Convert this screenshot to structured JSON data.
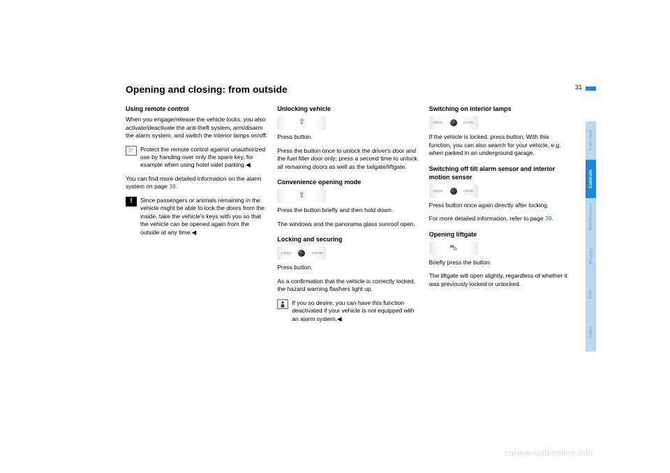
{
  "page_number": "31",
  "title": "Opening and closing: from outside",
  "watermark": "carmanualsonline.info",
  "col1": {
    "h1": "Using remote control",
    "p1": "When you engage/release the vehicle locks, you also activate/deactivate the anti-theft system, arm/disarm the alarm system, and switch the interior lamps on/off.",
    "note1": "Protect the remote control against unauthorized use by handing over only the spare key, for example when using hotel valet parking.◀",
    "p2a": "You can find more detailed information on the alarm system on page ",
    "p2link": "38",
    "p2b": ".",
    "warn1": "Since passengers or animals remaining in the vehicle might be able to lock the doors from the inside, take the vehicle's keys with you so that the vehicle can be opened again from the outside at any time.◀"
  },
  "col2": {
    "h1": "Unlocking vehicle",
    "p1": "Press button.",
    "p2": "Press the button once to unlock the driver's door and the fuel filler door only; press a second time to unlock all remaining doors as well as the tailgate/liftgate.",
    "h2": "Convenience opening mode",
    "p3": "Press the button briefly and then hold down.",
    "p4": "The windows and the panorama glass sunroof open.",
    "h3": "Locking and securing",
    "p5": "Press button.",
    "p6": "As a confirmation that the vehicle is correctly locked, the hazard warning flashers light up.",
    "note1": "If you so desire, you can have this function deactivated if your vehi­cle is not equipped with an alarm sys­tem.◀"
  },
  "col3": {
    "h1": "Switching on interior lamps",
    "p1": "If the vehicle is locked, press button. With this function, you can also search for your vehicle, e.g. when parked in an underground garage.",
    "h2": "Switching off tilt alarm sensor and interior motion sensor",
    "p2": "Press button once again directly after locking.",
    "p3a": "For more detailed information, refer to page ",
    "p3link": "39",
    "p3b": ".",
    "h3": "Opening liftgate",
    "p4": "Briefly press the button.",
    "p5": "The liftgate will open slightly, regardless of whether it was previously locked or unlocked."
  },
  "tabs": [
    {
      "label": "Overview",
      "bg": "#b7d9f5",
      "fg": "#8eb8d8"
    },
    {
      "label": "Controls",
      "bg": "#1789e6",
      "fg": "#ffffff"
    },
    {
      "label": "Maintenance",
      "bg": "#b7d9f5",
      "fg": "#8eb8d8"
    },
    {
      "label": "Repairs",
      "bg": "#b7d9f5",
      "fg": "#8eb8d8"
    },
    {
      "label": "Data",
      "bg": "#b7d9f5",
      "fg": "#8eb8d8"
    },
    {
      "label": "Index",
      "bg": "#b7d9f5",
      "fg": "#8eb8d8"
    }
  ]
}
